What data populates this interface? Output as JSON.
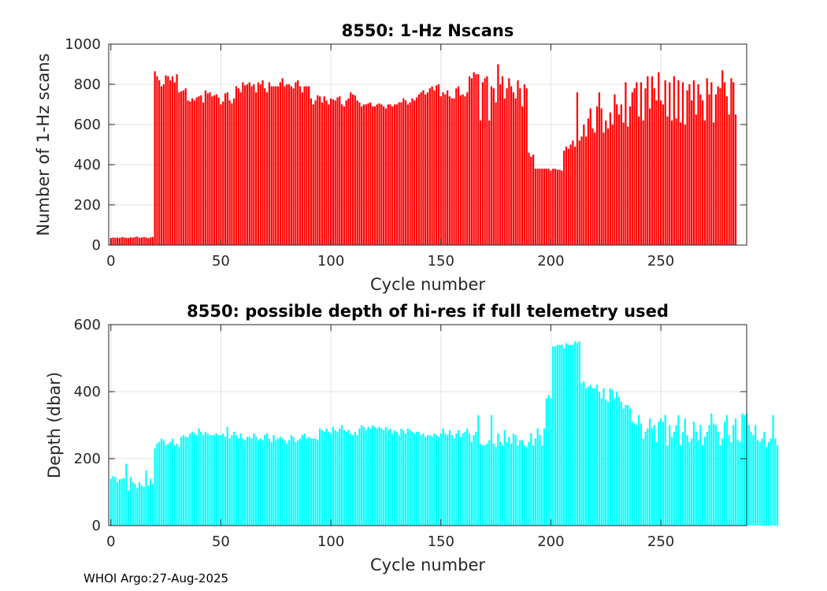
{
  "footer": "WHOI Argo:27-Aug-2025",
  "chart_data": [
    {
      "type": "bar",
      "title": "8550: 1-Hz Nscans",
      "xlabel": "Cycle number",
      "ylabel": "Number of 1-Hz scans",
      "xlim": [
        -1,
        289
      ],
      "ylim": [
        0,
        1000
      ],
      "xticks": [
        0,
        50,
        100,
        150,
        200,
        250
      ],
      "yticks": [
        0,
        200,
        400,
        600,
        800,
        1000
      ],
      "grid": true,
      "color": "#ff0000",
      "x_start": 0,
      "values": [
        35,
        38,
        36,
        37,
        35,
        40,
        38,
        36,
        35,
        38,
        37,
        40,
        42,
        36,
        38,
        40,
        38,
        35,
        38,
        40,
        865,
        840,
        820,
        790,
        800,
        845,
        840,
        820,
        840,
        810,
        850,
        760,
        765,
        770,
        780,
        720,
        715,
        730,
        720,
        735,
        740,
        745,
        710,
        770,
        755,
        760,
        740,
        745,
        750,
        735,
        700,
        715,
        755,
        760,
        720,
        705,
        730,
        790,
        780,
        760,
        810,
        795,
        800,
        810,
        790,
        800,
        760,
        810,
        800,
        820,
        780,
        760,
        810,
        790,
        790,
        790,
        790,
        810,
        830,
        790,
        800,
        800,
        790,
        780,
        810,
        820,
        790,
        760,
        790,
        790,
        790,
        730,
        700,
        720,
        745,
        740,
        710,
        740,
        720,
        700,
        730,
        725,
        720,
        735,
        740,
        700,
        690,
        720,
        730,
        760,
        750,
        745,
        720,
        710,
        690,
        700,
        700,
        705,
        710,
        690,
        690,
        700,
        705,
        700,
        690,
        680,
        700,
        700,
        690,
        700,
        700,
        710,
        710,
        730,
        720,
        700,
        710,
        730,
        720,
        735,
        750,
        760,
        770,
        750,
        760,
        780,
        790,
        770,
        795,
        800,
        740,
        760,
        750,
        770,
        740,
        730,
        730,
        780,
        790,
        745,
        750,
        740,
        760,
        840,
        830,
        860,
        850,
        850,
        620,
        810,
        830,
        840,
        620,
        790,
        780,
        710,
        900,
        800,
        840,
        730,
        780,
        830,
        790,
        760,
        730,
        820,
        780,
        690,
        800,
        780,
        460,
        440,
        450,
        380,
        380,
        380,
        380,
        380,
        380,
        380,
        370,
        380,
        380,
        375,
        375,
        370,
        470,
        490,
        480,
        500,
        520,
        490,
        760,
        520,
        540,
        600,
        540,
        630,
        680,
        580,
        560,
        690,
        760,
        680,
        560,
        620,
        580,
        660,
        600,
        750,
        700,
        650,
        700,
        610,
        810,
        590,
        690,
        760,
        780,
        810,
        640,
        810,
        620,
        780,
        840,
        680,
        840,
        780,
        720,
        860,
        720,
        700,
        820,
        640,
        810,
        620,
        840,
        630,
        820,
        610,
        810,
        600,
        770,
        800,
        720,
        820,
        650,
        800,
        750,
        720,
        620,
        830,
        750,
        810,
        610,
        750,
        790,
        780,
        870,
        810,
        740,
        650,
        830,
        810,
        650
      ]
    },
    {
      "type": "bar",
      "title": "8550: possible depth of hi-res if full telemetry used",
      "xlabel": "Cycle number",
      "ylabel": "Depth (dbar)",
      "xlim": [
        -1,
        289
      ],
      "ylim": [
        0,
        600
      ],
      "xticks": [
        0,
        50,
        100,
        150,
        200,
        250
      ],
      "yticks": [
        0,
        200,
        400,
        600
      ],
      "grid": true,
      "color": "#00ffff",
      "x_start": 0,
      "values": [
        140,
        148,
        145,
        130,
        138,
        140,
        142,
        185,
        105,
        145,
        130,
        125,
        112,
        130,
        120,
        115,
        165,
        120,
        140,
        125,
        230,
        245,
        250,
        260,
        255,
        240,
        245,
        250,
        260,
        240,
        245,
        235,
        265,
        270,
        265,
        265,
        275,
        280,
        275,
        270,
        290,
        280,
        270,
        280,
        275,
        270,
        270,
        270,
        275,
        270,
        270,
        275,
        265,
        295,
        260,
        270,
        280,
        270,
        260,
        275,
        260,
        255,
        265,
        265,
        260,
        275,
        265,
        255,
        260,
        255,
        270,
        275,
        260,
        250,
        270,
        255,
        260,
        265,
        260,
        255,
        245,
        255,
        270,
        265,
        250,
        255,
        260,
        270,
        275,
        260,
        265,
        260,
        260,
        260,
        255,
        290,
        285,
        280,
        290,
        280,
        275,
        295,
        285,
        280,
        290,
        300,
        285,
        280,
        285,
        275,
        270,
        280,
        270,
        290,
        300,
        295,
        285,
        295,
        290,
        300,
        295,
        290,
        295,
        290,
        285,
        295,
        285,
        290,
        275,
        285,
        280,
        270,
        290,
        285,
        275,
        290,
        285,
        280,
        275,
        280,
        280,
        270,
        275,
        265,
        270,
        270,
        265,
        275,
        270,
        265,
        275,
        290,
        275,
        270,
        285,
        270,
        260,
        275,
        285,
        265,
        275,
        280,
        290,
        275,
        250,
        270,
        280,
        330,
        245,
        240,
        240,
        245,
        255,
        330,
        245,
        235,
        275,
        250,
        240,
        285,
        250,
        265,
        245,
        275,
        270,
        240,
        255,
        255,
        240,
        235,
        250,
        275,
        240,
        260,
        290,
        270,
        240,
        290,
        380,
        390,
        380,
        535,
        535,
        540,
        540,
        540,
        530,
        545,
        540,
        540,
        540,
        550,
        545,
        550,
        425,
        430,
        410,
        415,
        420,
        410,
        410,
        420,
        400,
        380,
        410,
        375,
        370,
        410,
        405,
        380,
        400,
        385,
        370,
        350,
        360,
        360,
        350,
        310,
        305,
        300,
        330,
        305,
        260,
        280,
        290,
        320,
        290,
        300,
        250,
        310,
        320,
        310,
        330,
        240,
        300,
        265,
        280,
        300,
        330,
        240,
        280,
        320,
        270,
        250,
        260,
        310,
        280,
        255,
        300,
        240,
        265,
        280,
        300,
        335,
        305,
        300,
        280,
        240,
        260,
        310,
        330,
        270,
        250,
        300,
        320,
        255,
        250,
        335,
        330,
        335,
        300,
        280,
        270,
        300,
        255,
        250,
        260,
        280,
        235,
        250,
        260,
        330,
        260,
        240
      ]
    }
  ]
}
